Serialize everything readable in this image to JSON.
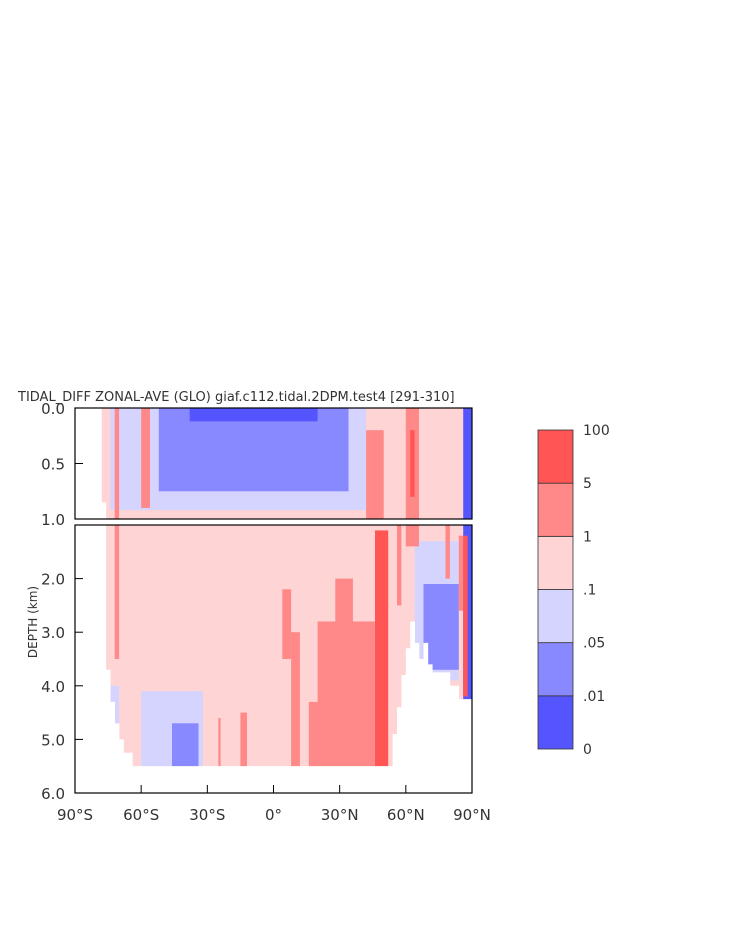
{
  "chart_data": {
    "type": "heatmap",
    "title": "TIDAL_DIFF ZONAL-AVE (GLO) giaf.c112.tidal.2DPM.test4 [291-310]",
    "ylabel": "DEPTH (km)",
    "xlim": [
      -90,
      90
    ],
    "ylim": [
      6.0,
      0.0
    ],
    "panels": [
      {
        "name": "upper",
        "ylim": [
          1.0,
          0.0
        ],
        "yticks": [
          {
            "v": 0.0,
            "t": "0.0"
          },
          {
            "v": 0.5,
            "t": "0.5"
          },
          {
            "v": 1.0,
            "t": "1.0"
          }
        ]
      },
      {
        "name": "lower",
        "ylim": [
          6.0,
          1.0
        ],
        "yticks": [
          {
            "v": 2.0,
            "t": "2.0"
          },
          {
            "v": 3.0,
            "t": "3.0"
          },
          {
            "v": 4.0,
            "t": "4.0"
          },
          {
            "v": 5.0,
            "t": "5.0"
          },
          {
            "v": 6.0,
            "t": "6.0"
          }
        ]
      }
    ],
    "xticks": [
      {
        "v": -90,
        "t": "90°S"
      },
      {
        "v": -60,
        "t": "60°S"
      },
      {
        "v": -30,
        "t": "30°S"
      },
      {
        "v": 0,
        "t": "0°"
      },
      {
        "v": 30,
        "t": "30°N"
      },
      {
        "v": 60,
        "t": "60°N"
      },
      {
        "v": 90,
        "t": "90°N"
      }
    ],
    "levels": [
      "0",
      ".01",
      ".05",
      ".1",
      "1",
      "5",
      "100"
    ],
    "colors": [
      "#5555ff",
      "#8888ff",
      "#d4d4ff",
      "#ffd4d4",
      "#ff8888",
      "#ff5555"
    ],
    "bottom_depth": [
      [
        -78,
        0.85
      ],
      [
        -76,
        3.7
      ],
      [
        -74,
        4.3
      ],
      [
        -72,
        4.7
      ],
      [
        -70,
        5.0
      ],
      [
        -68,
        5.25
      ],
      [
        -64,
        5.5
      ],
      [
        -55,
        5.5
      ],
      [
        -40,
        5.5
      ],
      [
        -20,
        5.5
      ],
      [
        0,
        5.5
      ],
      [
        20,
        5.5
      ],
      [
        40,
        5.5
      ],
      [
        52,
        5.5
      ],
      [
        54,
        4.9
      ],
      [
        56,
        4.4
      ],
      [
        58,
        3.8
      ],
      [
        60,
        3.3
      ],
      [
        62,
        2.8
      ],
      [
        64,
        3.2
      ],
      [
        66,
        3.5
      ],
      [
        68,
        3.2
      ],
      [
        70,
        3.6
      ],
      [
        72,
        3.75
      ],
      [
        76,
        3.75
      ],
      [
        80,
        4.0
      ],
      [
        84,
        4.25
      ],
      [
        88,
        4.25
      ],
      [
        90,
        4.25
      ]
    ],
    "regions": [
      {
        "level": 3,
        "x": [
          -78,
          90
        ],
        "y": [
          0.0,
          5.5
        ]
      },
      {
        "level": 2,
        "x": [
          -74,
          42
        ],
        "y": [
          0.0,
          0.92
        ]
      },
      {
        "level": 2,
        "x": [
          -60,
          -32
        ],
        "y": [
          4.1,
          5.5
        ]
      },
      {
        "level": 2,
        "x": [
          64,
          84
        ],
        "y": [
          1.3,
          3.9
        ]
      },
      {
        "level": 2,
        "x": [
          -76,
          -70
        ],
        "y": [
          4.0,
          5.3
        ]
      },
      {
        "level": 1,
        "x": [
          -52,
          34
        ],
        "y": [
          0.0,
          0.75
        ]
      },
      {
        "level": 1,
        "x": [
          -46,
          -34
        ],
        "y": [
          4.7,
          5.5
        ]
      },
      {
        "level": 1,
        "x": [
          68,
          84
        ],
        "y": [
          2.1,
          3.7
        ]
      },
      {
        "level": 0,
        "x": [
          -38,
          20
        ],
        "y": [
          0.0,
          0.12
        ]
      },
      {
        "level": 0,
        "x": [
          86,
          90
        ],
        "y": [
          0.0,
          4.25
        ]
      },
      {
        "level": 4,
        "x": [
          -72,
          -70
        ],
        "y": [
          0.0,
          3.5
        ]
      },
      {
        "level": 4,
        "x": [
          -60,
          -56
        ],
        "y": [
          0.0,
          0.9
        ]
      },
      {
        "level": 4,
        "x": [
          -25,
          -24
        ],
        "y": [
          4.6,
          5.5
        ]
      },
      {
        "level": 4,
        "x": [
          -15,
          -12
        ],
        "y": [
          4.5,
          5.5
        ]
      },
      {
        "level": 4,
        "x": [
          4,
          8
        ],
        "y": [
          2.2,
          3.5
        ]
      },
      {
        "level": 4,
        "x": [
          8,
          12
        ],
        "y": [
          3.0,
          5.5
        ]
      },
      {
        "level": 4,
        "x": [
          16,
          22
        ],
        "y": [
          4.3,
          5.5
        ]
      },
      {
        "level": 4,
        "x": [
          20,
          46
        ],
        "y": [
          2.8,
          5.5
        ]
      },
      {
        "level": 4,
        "x": [
          28,
          36
        ],
        "y": [
          2.0,
          2.8
        ]
      },
      {
        "level": 4,
        "x": [
          42,
          50
        ],
        "y": [
          0.2,
          1.0
        ]
      },
      {
        "level": 4,
        "x": [
          56,
          58
        ],
        "y": [
          1.0,
          2.5
        ]
      },
      {
        "level": 4,
        "x": [
          60,
          66
        ],
        "y": [
          0.0,
          1.4
        ]
      },
      {
        "level": 4,
        "x": [
          78,
          80
        ],
        "y": [
          1.0,
          2.0
        ]
      },
      {
        "level": 4,
        "x": [
          84,
          86
        ],
        "y": [
          1.2,
          2.6
        ]
      },
      {
        "level": 5,
        "x": [
          46,
          52
        ],
        "y": [
          1.1,
          5.5
        ]
      },
      {
        "level": 5,
        "x": [
          62,
          64
        ],
        "y": [
          0.2,
          0.8
        ]
      },
      {
        "level": 5,
        "x": [
          86,
          88
        ],
        "y": [
          1.2,
          4.2
        ]
      }
    ]
  }
}
